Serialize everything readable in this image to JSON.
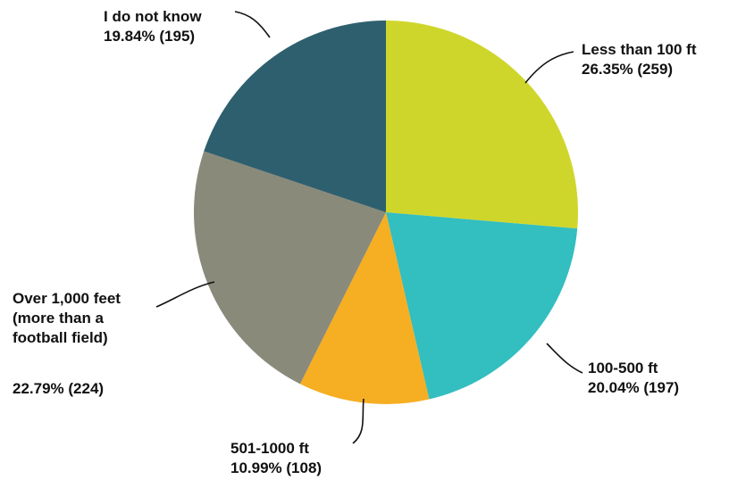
{
  "chart_data": {
    "type": "pie",
    "title": "",
    "slices": [
      {
        "label": "Less than 100 ft",
        "value_label": "26.35% (259)",
        "percent": 26.35,
        "count": 259,
        "color": "#cfd62b"
      },
      {
        "label": "100-500 ft",
        "value_label": "20.04% (197)",
        "percent": 20.04,
        "count": 197,
        "color": "#33bec0"
      },
      {
        "label": "501-1000 ft",
        "value_label": "10.99% (108)",
        "percent": 10.99,
        "count": 108,
        "color": "#f6ae22"
      },
      {
        "label": "Over 1,000 feet (more than a football field)",
        "value_label": "22.79% (224)",
        "percent": 22.79,
        "count": 224,
        "color": "#8a8a7a"
      },
      {
        "label": "I do not know",
        "value_label": "19.84% (195)",
        "percent": 19.84,
        "count": 195,
        "color": "#2e5f6e"
      }
    ],
    "label_lines": [
      [
        "Less than 100 ft",
        "26.35% (259)"
      ],
      [
        "100-500 ft",
        "20.04% (197)"
      ],
      [
        "501-1000 ft",
        "10.99% (108)"
      ],
      [
        "Over 1,000 feet",
        "(more than a",
        "football field)",
        "",
        "22.79% (224)"
      ],
      [
        "I do not know",
        "19.84% (195)"
      ]
    ],
    "legend": "none",
    "start": "12 o'clock, clockwise"
  }
}
